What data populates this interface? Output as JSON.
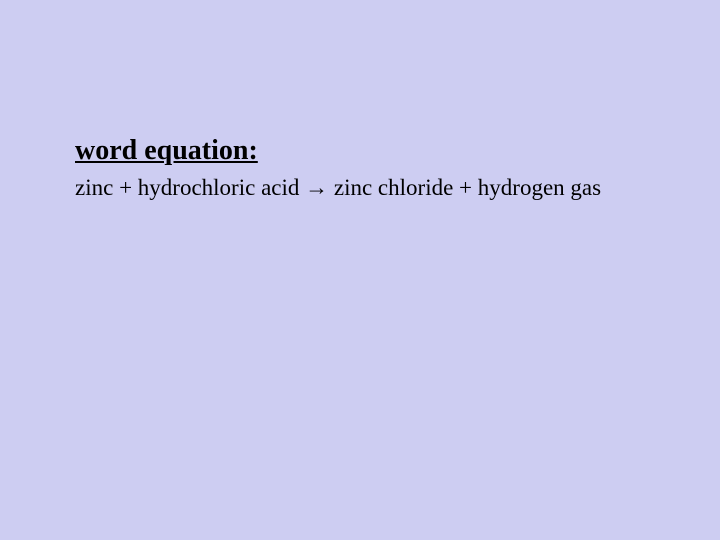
{
  "slide": {
    "background_color": "#cdcdf2",
    "text_color": "#000000",
    "heading": {
      "text": "word equation:",
      "font_size": 28,
      "font_weight": "bold",
      "text_decoration": "underline"
    },
    "equation": {
      "reactant1": "zinc",
      "plus1": " + ",
      "reactant2": "hydrochloric acid",
      "arrow": " → ",
      "product1": "zinc chloride",
      "plus2": " + ",
      "product2": "hydrogen gas",
      "font_size": 23,
      "font_weight": "normal"
    }
  }
}
